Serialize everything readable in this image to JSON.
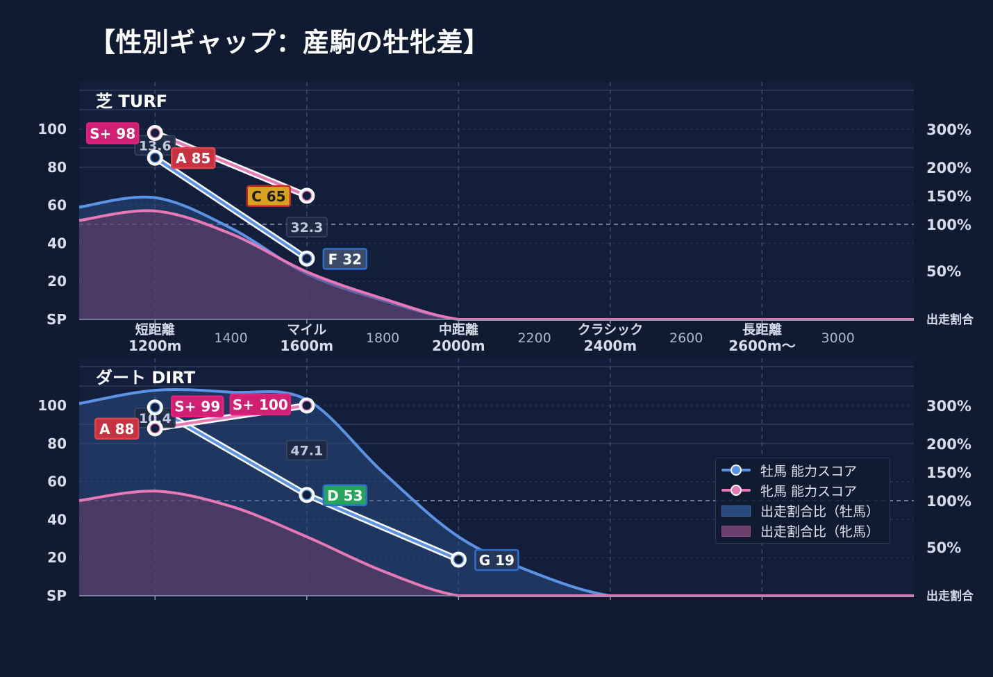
{
  "title": "【性別ギャップ：産駒の牡牝差】",
  "colors": {
    "background": "#101a30",
    "panel": "#131f3a",
    "male": "#5b93e6",
    "female": "#e879b7",
    "grid": "#3a4a6b",
    "text": "#d5dcea"
  },
  "legend": {
    "male_score": "牡馬 能力スコア",
    "female_score": "牝馬 能力スコア",
    "male_ratio": "出走割合比（牡馬）",
    "female_ratio": "出走割合比（牝馬）"
  },
  "chart_data": [
    {
      "type": "line",
      "title": "芝 TURF",
      "x_categories": [
        {
          "label": "短距離",
          "sub": "1200m",
          "x": 1200
        },
        {
          "label": "マイル",
          "sub": "1600m",
          "x": 1600
        },
        {
          "label": "中距離",
          "sub": "2000m",
          "x": 2000
        },
        {
          "label": "クラシック",
          "sub": "2400m",
          "x": 2400
        },
        {
          "label": "長距離",
          "sub": "2600m〜",
          "x": 2800
        }
      ],
      "x_minor_ticks": [
        {
          "label": "1400",
          "x": 1400
        },
        {
          "label": "1800",
          "x": 1800
        },
        {
          "label": "2200",
          "x": 2200
        },
        {
          "label": "2600",
          "x": 2600
        },
        {
          "label": "3000",
          "x": 3000
        }
      ],
      "xlim": [
        1000,
        3200
      ],
      "ylim": [
        0,
        100
      ],
      "y_ticks": [
        "SP",
        "20",
        "40",
        "60",
        "80",
        "100"
      ],
      "y2_ticks": [
        "出走割合",
        "50%",
        "100%",
        "150%",
        "200%",
        "300%"
      ],
      "series": [
        {
          "name": "牡馬 能力スコア",
          "points": [
            {
              "x": 1200,
              "y": 85,
              "label": "A 85"
            },
            {
              "x": 1600,
              "y": 32,
              "label": "F 32"
            }
          ]
        },
        {
          "name": "牝馬 能力スコア",
          "points": [
            {
              "x": 1200,
              "y": 98,
              "label": "S+ 98"
            },
            {
              "x": 1600,
              "y": 65,
              "label": "C 65"
            }
          ]
        }
      ],
      "gaps": [
        {
          "x": 1200,
          "value": "13.6"
        },
        {
          "x": 1600,
          "value": "32.3"
        }
      ],
      "ratio_series": [
        {
          "name": "出走割合比（牡馬）",
          "x": [
            1000,
            1200,
            1400,
            1600,
            1800,
            2000,
            2200,
            2400,
            2600,
            2800,
            3000,
            3200
          ],
          "y": [
            59,
            64,
            48,
            24,
            10,
            0,
            0,
            0,
            0,
            0,
            0,
            0
          ]
        },
        {
          "name": "出走割合比（牝馬）",
          "x": [
            1000,
            1200,
            1400,
            1600,
            1800,
            2000,
            2200,
            2400,
            2600,
            2800,
            3000,
            3200
          ],
          "y": [
            52,
            57,
            45,
            25,
            11,
            0,
            0,
            0,
            0,
            0,
            0,
            0
          ]
        }
      ]
    },
    {
      "type": "line",
      "title": "ダート DIRT",
      "x_categories": [
        {
          "label": "短距離",
          "sub": "1200m",
          "x": 1200
        },
        {
          "label": "マイル",
          "sub": "1600m",
          "x": 1600
        },
        {
          "label": "中距離",
          "sub": "2000m",
          "x": 2000
        },
        {
          "label": "クラシック",
          "sub": "2400m",
          "x": 2400
        },
        {
          "label": "長距離",
          "sub": "2600m〜",
          "x": 2800
        }
      ],
      "xlim": [
        1000,
        3200
      ],
      "ylim": [
        0,
        100
      ],
      "y_ticks": [
        "SP",
        "20",
        "40",
        "60",
        "80",
        "100"
      ],
      "y2_ticks": [
        "出走割合",
        "50%",
        "100%",
        "150%",
        "200%",
        "300%"
      ],
      "series": [
        {
          "name": "牡馬 能力スコア",
          "points": [
            {
              "x": 1200,
              "y": 99,
              "label": "S+ 99"
            },
            {
              "x": 1600,
              "y": 53,
              "label": "D 53"
            },
            {
              "x": 2000,
              "y": 19,
              "label": "G 19"
            }
          ]
        },
        {
          "name": "牝馬 能力スコア",
          "points": [
            {
              "x": 1200,
              "y": 88,
              "label": "A 88"
            },
            {
              "x": 1600,
              "y": 100,
              "label": "S+ 100"
            }
          ]
        }
      ],
      "gaps": [
        {
          "x": 1200,
          "value": "10.4"
        },
        {
          "x": 1600,
          "value": "47.1"
        }
      ],
      "ratio_series": [
        {
          "name": "出走割合比（牡馬）",
          "x": [
            1000,
            1200,
            1400,
            1600,
            1800,
            2000,
            2200,
            2400,
            2600,
            2800,
            3000,
            3200
          ],
          "y": [
            101,
            108,
            107,
            103,
            65,
            31,
            12,
            0,
            0,
            0,
            0,
            0
          ]
        },
        {
          "name": "出走割合比（牝馬）",
          "x": [
            1000,
            1200,
            1400,
            1600,
            1800,
            2000,
            2200,
            2400,
            2600,
            2800,
            3000,
            3200
          ],
          "y": [
            50,
            55,
            47,
            31,
            13,
            0,
            0,
            0,
            0,
            0,
            0,
            0
          ]
        }
      ]
    }
  ]
}
